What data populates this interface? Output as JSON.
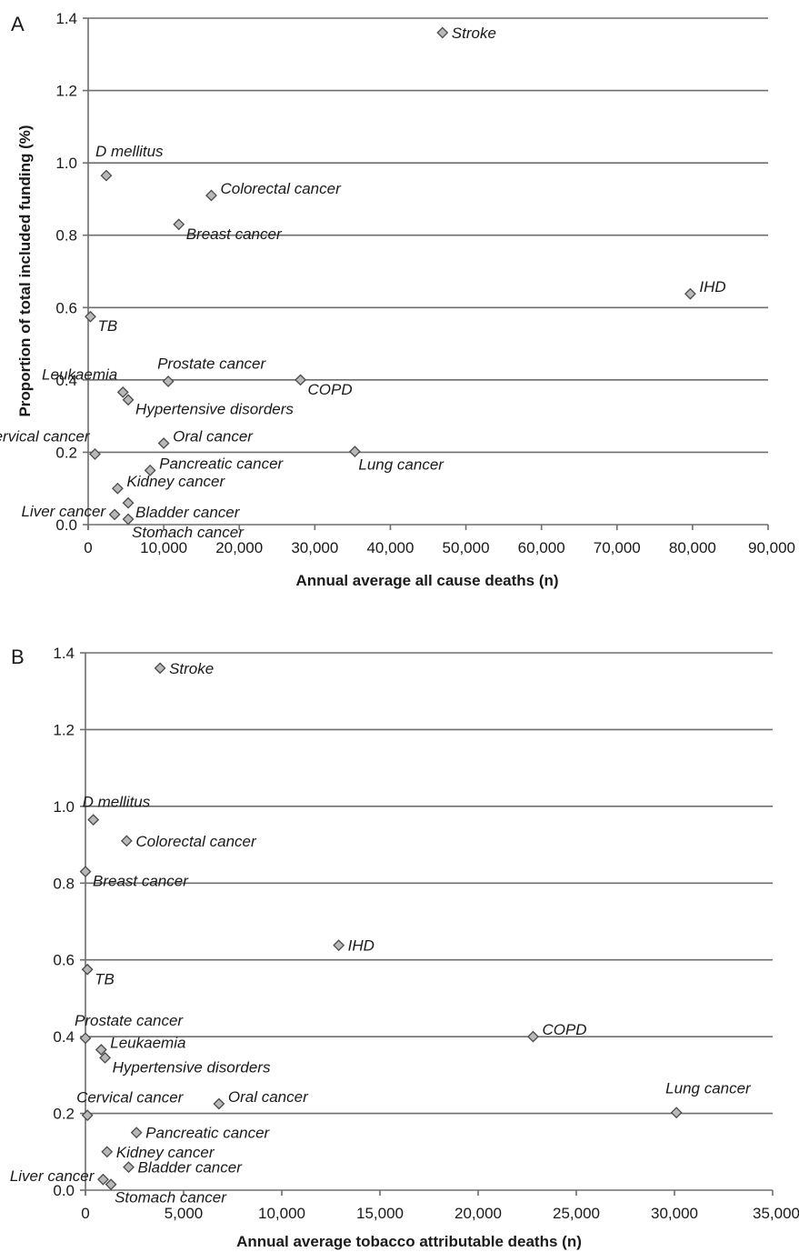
{
  "chart_data": [
    {
      "panel": "A",
      "type": "scatter",
      "xlabel": "Annual average all cause deaths (n)",
      "ylabel": "Proportion of total included funding (%)",
      "xlim": [
        0,
        90000
      ],
      "ylim": [
        0,
        1.4
      ],
      "xticks": [
        "0",
        "10,000",
        "20,000",
        "30,000",
        "40,000",
        "50,000",
        "60,000",
        "70,000",
        "80,000",
        "90,000"
      ],
      "yticks": [
        "0.0",
        "0.2",
        "0.4",
        "0.6",
        "0.8",
        "1.0",
        "1.2",
        "1.4"
      ],
      "grid": "horizontal",
      "marker": "diamond",
      "points": [
        {
          "label": "Stroke",
          "x": 46900,
          "y": 1.36,
          "pos": "right"
        },
        {
          "label": "D mellitus",
          "x": 2400,
          "y": 0.965,
          "pos": "above"
        },
        {
          "label": "Colorectal cancer",
          "x": 16300,
          "y": 0.91,
          "pos": "right-up"
        },
        {
          "label": "Breast cancer",
          "x": 12000,
          "y": 0.83,
          "pos": "right-down"
        },
        {
          "label": "IHD",
          "x": 79700,
          "y": 0.638,
          "pos": "right-up"
        },
        {
          "label": "TB",
          "x": 300,
          "y": 0.575,
          "pos": "right-down"
        },
        {
          "label": "Prostate cancer",
          "x": 10600,
          "y": 0.396,
          "pos": "above-right"
        },
        {
          "label": "COPD",
          "x": 28100,
          "y": 0.4,
          "pos": "right-down"
        },
        {
          "label": "Leukaemia",
          "x": 4600,
          "y": 0.366,
          "pos": "above-left"
        },
        {
          "label": "Hypertensive disorders",
          "x": 5300,
          "y": 0.345,
          "pos": "right-down"
        },
        {
          "label": "Oral cancer",
          "x": 10000,
          "y": 0.225,
          "pos": "right-up"
        },
        {
          "label": "Cervical cancer",
          "x": 900,
          "y": 0.195,
          "pos": "above-left"
        },
        {
          "label": "Lung cancer",
          "x": 35300,
          "y": 0.202,
          "pos": "below-right"
        },
        {
          "label": "Pancreatic cancer",
          "x": 8200,
          "y": 0.15,
          "pos": "right-up"
        },
        {
          "label": "Kidney cancer",
          "x": 3900,
          "y": 0.1,
          "pos": "right-up"
        },
        {
          "label": "Bladder cancer",
          "x": 5300,
          "y": 0.06,
          "pos": "right-down"
        },
        {
          "label": "Liver cancer",
          "x": 3500,
          "y": 0.028,
          "pos": "left"
        },
        {
          "label": "Stomach cancer",
          "x": 5300,
          "y": 0.015,
          "pos": "below-right"
        }
      ]
    },
    {
      "panel": "B",
      "type": "scatter",
      "xlabel": "Annual average tobacco attributable deaths (n)",
      "ylabel": "",
      "xlim": [
        0,
        35000
      ],
      "ylim": [
        0,
        1.4
      ],
      "xticks": [
        "0",
        "5,000",
        "10,000",
        "15,000",
        "20,000",
        "25,000",
        "30,000",
        "35,000"
      ],
      "yticks": [
        "0.0",
        "0.2",
        "0.4",
        "0.6",
        "0.8",
        "1.0",
        "1.2",
        "1.4"
      ],
      "grid": "horizontal",
      "marker": "diamond",
      "points": [
        {
          "label": "Stroke",
          "x": 3800,
          "y": 1.36,
          "pos": "right"
        },
        {
          "label": "D mellitus",
          "x": 400,
          "y": 0.965,
          "pos": "above-right"
        },
        {
          "label": "Colorectal cancer",
          "x": 2100,
          "y": 0.91,
          "pos": "right"
        },
        {
          "label": "Breast cancer",
          "x": 0,
          "y": 0.83,
          "pos": "right-down"
        },
        {
          "label": "IHD",
          "x": 12900,
          "y": 0.638,
          "pos": "right"
        },
        {
          "label": "TB",
          "x": 100,
          "y": 0.575,
          "pos": "right-down"
        },
        {
          "label": "COPD",
          "x": 22800,
          "y": 0.4,
          "pos": "right-up"
        },
        {
          "label": "Prostate cancer",
          "x": 0,
          "y": 0.396,
          "pos": "above-right"
        },
        {
          "label": "Leukaemia",
          "x": 800,
          "y": 0.366,
          "pos": "right-up"
        },
        {
          "label": "Hypertensive disorders",
          "x": 1000,
          "y": 0.345,
          "pos": "right-down"
        },
        {
          "label": "Oral cancer",
          "x": 6800,
          "y": 0.225,
          "pos": "right-up"
        },
        {
          "label": "Cervical cancer",
          "x": 100,
          "y": 0.195,
          "pos": "above-right"
        },
        {
          "label": "Lung cancer",
          "x": 30100,
          "y": 0.202,
          "pos": "above"
        },
        {
          "label": "Pancreatic cancer",
          "x": 2600,
          "y": 0.15,
          "pos": "right"
        },
        {
          "label": "Kidney cancer",
          "x": 1100,
          "y": 0.1,
          "pos": "right"
        },
        {
          "label": "Bladder cancer",
          "x": 2200,
          "y": 0.06,
          "pos": "right"
        },
        {
          "label": "Liver cancer",
          "x": 900,
          "y": 0.028,
          "pos": "left"
        },
        {
          "label": "Stomach cancer",
          "x": 1300,
          "y": 0.015,
          "pos": "below-right"
        }
      ]
    }
  ]
}
